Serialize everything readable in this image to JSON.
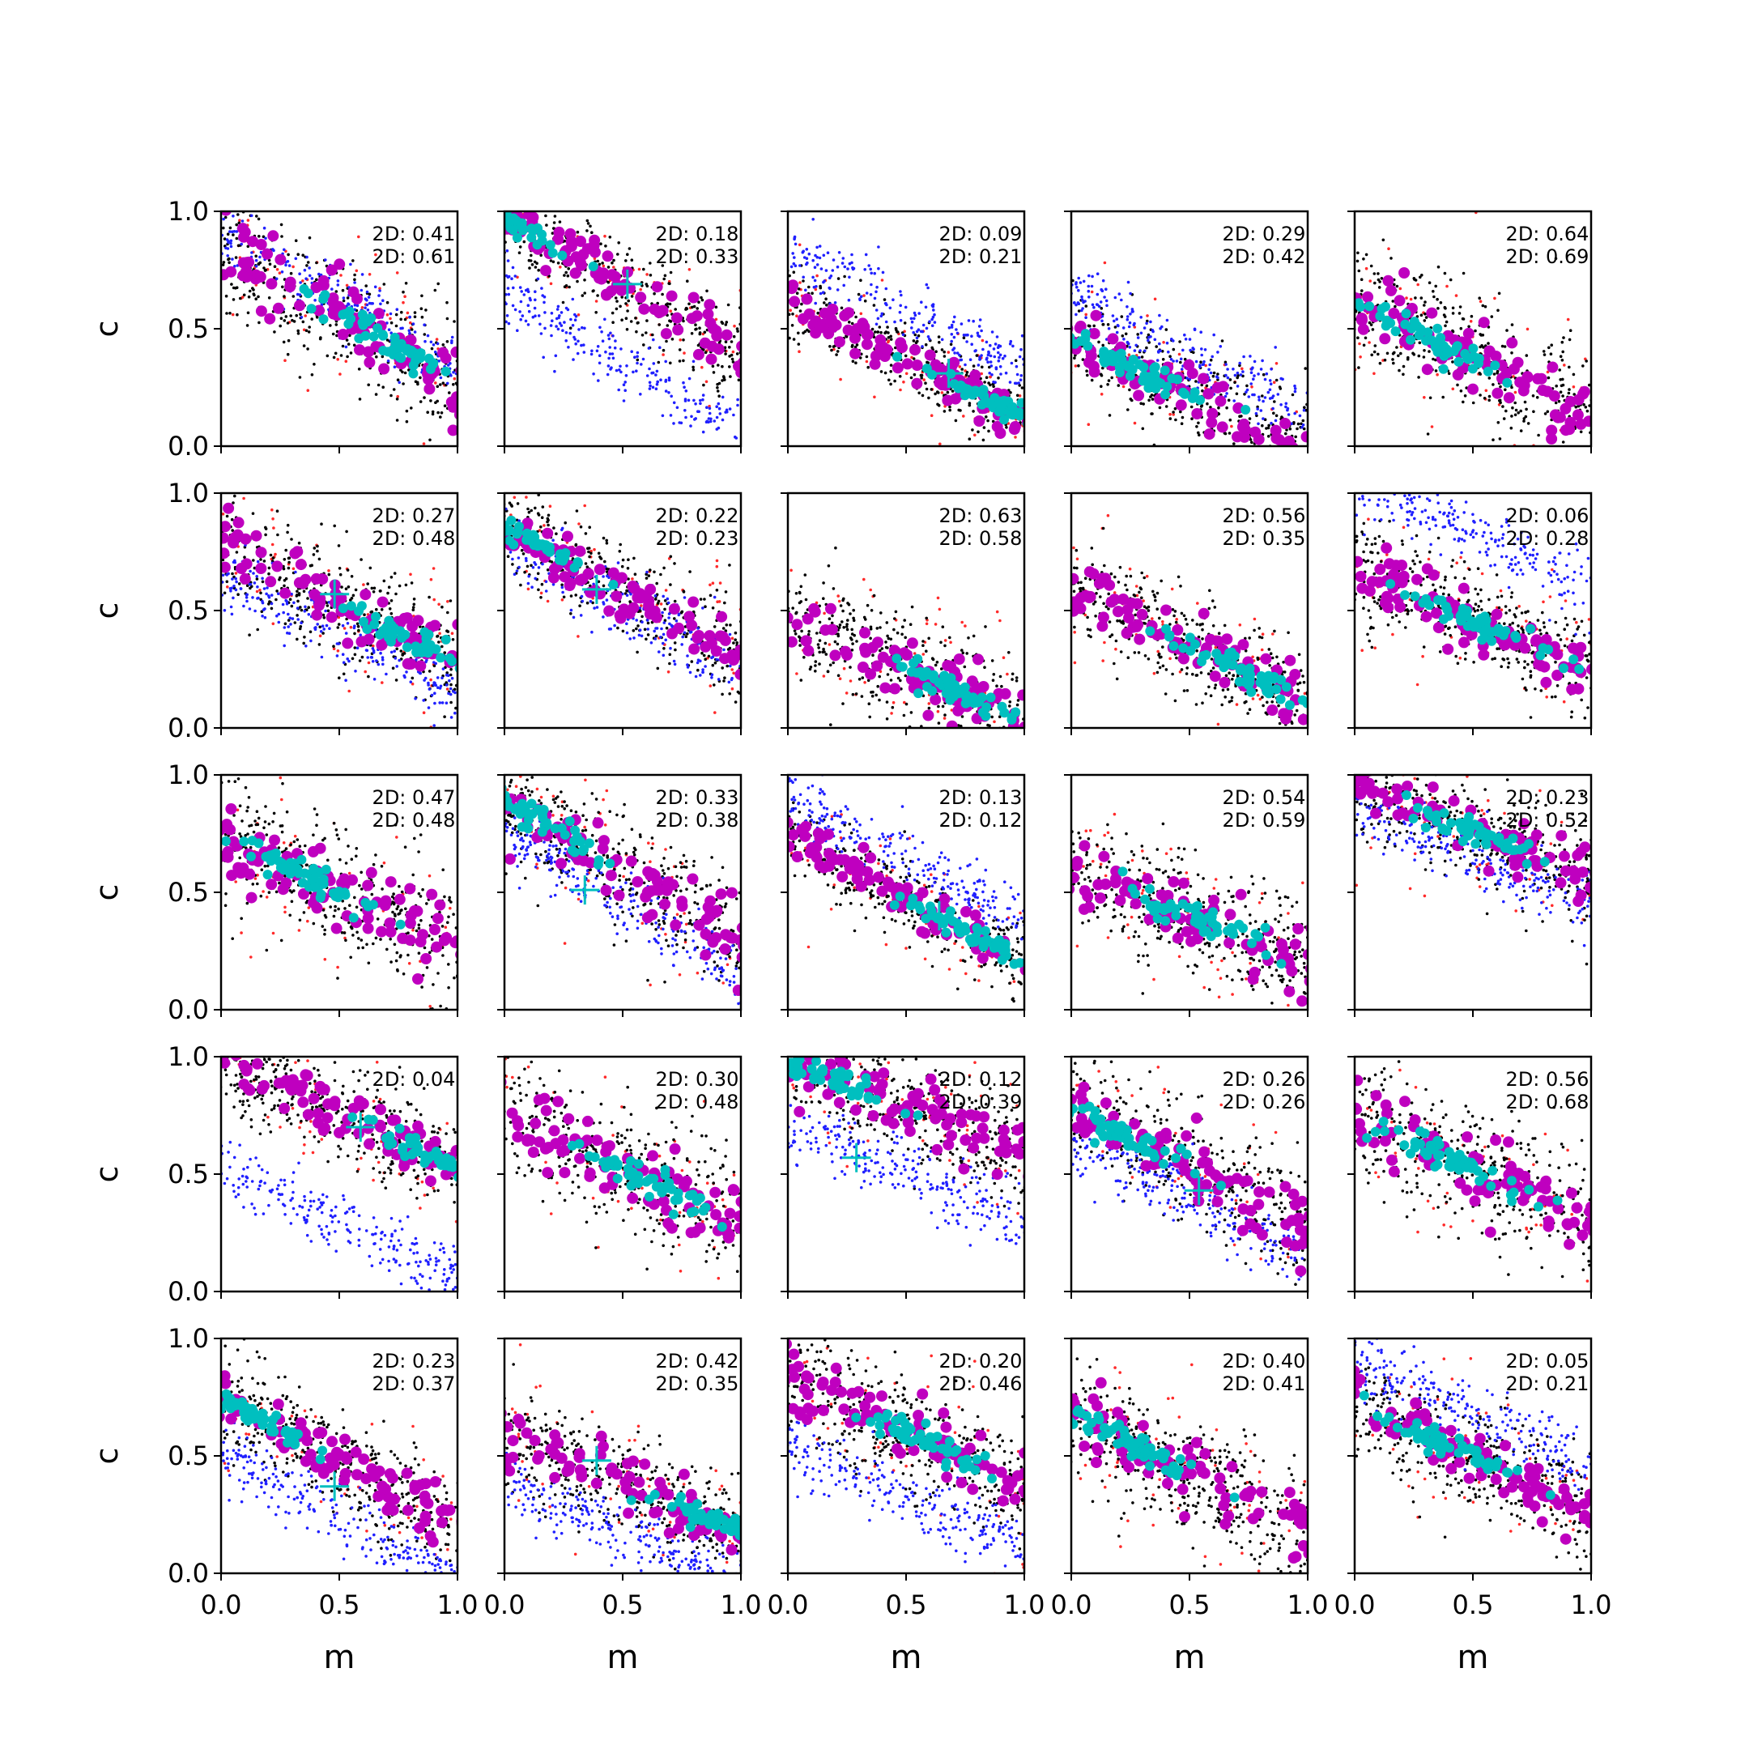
{
  "figure": {
    "xlabel": "m",
    "ylabel": "c",
    "xticks": [
      "0.0",
      "0.5",
      "1.0"
    ],
    "yticks": [
      "0.0",
      "0.5",
      "1.0"
    ]
  },
  "chart_data": {
    "type": "scatter",
    "layout": "5x5 grid of scatter panels",
    "xlim": [
      0,
      1
    ],
    "ylim": [
      0,
      1
    ],
    "xlabel": "m",
    "ylabel": "c",
    "point_colors": {
      "red": "#ff2a2a",
      "black": "#000000",
      "blue": "#2020ff",
      "magenta": "#bf00bf",
      "cyan": "#00bfbf"
    },
    "marker_color": "#00bfbf",
    "panels": [
      {
        "row": 0,
        "col": 0,
        "annotation1": "2D: 0.41",
        "annotation2": "2D: 0.61",
        "slope": -0.55,
        "intercept": 0.83,
        "width": 0.24,
        "center_x": 0.7,
        "blue_intercept": 0.9,
        "marker": null
      },
      {
        "row": 0,
        "col": 1,
        "annotation1": "2D: 0.18",
        "annotation2": "2D: 0.33",
        "slope": -0.6,
        "intercept": 0.98,
        "width": 0.18,
        "center_x": 0.05,
        "blue_intercept": 0.66,
        "marker": [
          0.52,
          0.69
        ]
      },
      {
        "row": 0,
        "col": 2,
        "annotation1": "2D: 0.09",
        "annotation2": "2D: 0.21",
        "slope": -0.5,
        "intercept": 0.62,
        "width": 0.16,
        "center_x": 0.92,
        "blue_intercept": 0.82,
        "marker": [
          0.68,
          0.31
        ]
      },
      {
        "row": 0,
        "col": 3,
        "annotation1": "2D: 0.29",
        "annotation2": "2D: 0.42",
        "slope": -0.5,
        "intercept": 0.47,
        "width": 0.2,
        "center_x": 0.25,
        "blue_intercept": 0.64,
        "marker": null
      },
      {
        "row": 0,
        "col": 4,
        "annotation1": "2D: 0.64",
        "annotation2": "2D: 0.69",
        "slope": -0.5,
        "intercept": 0.62,
        "width": 0.24,
        "center_x": 0.35,
        "blue_intercept": null,
        "marker": null
      },
      {
        "row": 1,
        "col": 0,
        "annotation1": "2D: 0.27",
        "annotation2": "2D: 0.48",
        "slope": -0.5,
        "intercept": 0.78,
        "width": 0.22,
        "center_x": 0.8,
        "blue_intercept": 0.66,
        "marker": [
          0.48,
          0.57
        ]
      },
      {
        "row": 1,
        "col": 1,
        "annotation1": "2D: 0.22",
        "annotation2": "2D: 0.23",
        "slope": -0.55,
        "intercept": 0.86,
        "width": 0.18,
        "center_x": 0.05,
        "blue_intercept": 0.8,
        "marker": [
          0.39,
          0.59
        ]
      },
      {
        "row": 1,
        "col": 2,
        "annotation1": "2D: 0.63",
        "annotation2": "2D: 0.58",
        "slope": -0.45,
        "intercept": 0.48,
        "width": 0.22,
        "center_x": 0.7,
        "blue_intercept": null,
        "marker": null
      },
      {
        "row": 1,
        "col": 3,
        "annotation1": "2D: 0.56",
        "annotation2": "2D: 0.35",
        "slope": -0.5,
        "intercept": 0.6,
        "width": 0.2,
        "center_x": 0.75,
        "blue_intercept": null,
        "marker": null
      },
      {
        "row": 1,
        "col": 4,
        "annotation1": "2D: 0.06",
        "annotation2": "2D: 0.28",
        "slope": -0.45,
        "intercept": 0.68,
        "width": 0.22,
        "center_x": 0.5,
        "blue_intercept": 1.05,
        "marker": null
      },
      {
        "row": 2,
        "col": 0,
        "annotation1": "2D: 0.47",
        "annotation2": "2D: 0.48",
        "slope": -0.45,
        "intercept": 0.73,
        "width": 0.24,
        "center_x": 0.4,
        "blue_intercept": null,
        "marker": null
      },
      {
        "row": 2,
        "col": 1,
        "annotation1": "2D: 0.33",
        "annotation2": "2D: 0.38",
        "slope": -0.6,
        "intercept": 0.9,
        "width": 0.22,
        "center_x": 0.1,
        "blue_intercept": 0.75,
        "marker": [
          0.34,
          0.51
        ]
      },
      {
        "row": 2,
        "col": 2,
        "annotation1": "2D: 0.13",
        "annotation2": "2D: 0.12",
        "slope": -0.55,
        "intercept": 0.75,
        "width": 0.15,
        "center_x": 0.75,
        "blue_intercept": 0.92,
        "marker": [
          0.64,
          0.4
        ]
      },
      {
        "row": 2,
        "col": 3,
        "annotation1": "2D: 0.54",
        "annotation2": "2D: 0.59",
        "slope": -0.4,
        "intercept": 0.6,
        "width": 0.24,
        "center_x": 0.5,
        "blue_intercept": null,
        "marker": null
      },
      {
        "row": 2,
        "col": 4,
        "annotation1": "2D: 0.23",
        "annotation2": "2D: 0.52",
        "slope": -0.4,
        "intercept": 0.96,
        "width": 0.2,
        "center_x": 0.5,
        "blue_intercept": 0.86,
        "marker": null
      },
      {
        "row": 3,
        "col": 0,
        "annotation1": "2D: 0.04",
        "annotation2": "",
        "slope": -0.45,
        "intercept": 0.98,
        "width": 0.18,
        "center_x": 0.9,
        "blue_intercept": 0.52,
        "marker": [
          0.59,
          0.7
        ]
      },
      {
        "row": 3,
        "col": 1,
        "annotation1": "2D: 0.30",
        "annotation2": "2D: 0.48",
        "slope": -0.45,
        "intercept": 0.75,
        "width": 0.24,
        "center_x": 0.6,
        "blue_intercept": null,
        "marker": null
      },
      {
        "row": 3,
        "col": 2,
        "annotation1": "2D: 0.12",
        "annotation2": "2D: 0.39",
        "slope": -0.4,
        "intercept": 0.98,
        "width": 0.2,
        "center_x": 0.2,
        "blue_intercept": 0.7,
        "marker": [
          0.29,
          0.57
        ]
      },
      {
        "row": 3,
        "col": 3,
        "annotation1": "2D: 0.26",
        "annotation2": "2D: 0.26",
        "slope": -0.5,
        "intercept": 0.78,
        "width": 0.22,
        "center_x": 0.2,
        "blue_intercept": 0.65,
        "marker": [
          0.54,
          0.43
        ]
      },
      {
        "row": 3,
        "col": 4,
        "annotation1": "2D: 0.56",
        "annotation2": "2D: 0.68",
        "slope": -0.45,
        "intercept": 0.75,
        "width": 0.24,
        "center_x": 0.4,
        "blue_intercept": null,
        "marker": null
      },
      {
        "row": 4,
        "col": 0,
        "annotation1": "2D: 0.23",
        "annotation2": "2D: 0.37",
        "slope": -0.55,
        "intercept": 0.75,
        "width": 0.2,
        "center_x": 0.1,
        "blue_intercept": 0.52,
        "marker": [
          0.48,
          0.37
        ]
      },
      {
        "row": 4,
        "col": 1,
        "annotation1": "2D: 0.42",
        "annotation2": "2D: 0.35",
        "slope": -0.4,
        "intercept": 0.58,
        "width": 0.2,
        "center_x": 0.9,
        "blue_intercept": 0.38,
        "marker": [
          0.39,
          0.48
        ]
      },
      {
        "row": 4,
        "col": 2,
        "annotation1": "2D: 0.20",
        "annotation2": "2D: 0.46",
        "slope": -0.45,
        "intercept": 0.82,
        "width": 0.24,
        "center_x": 0.6,
        "blue_intercept": 0.55,
        "marker": null
      },
      {
        "row": 4,
        "col": 3,
        "annotation1": "2D: 0.40",
        "annotation2": "2D: 0.41",
        "slope": -0.5,
        "intercept": 0.68,
        "width": 0.24,
        "center_x": 0.3,
        "blue_intercept": null,
        "marker": null
      },
      {
        "row": 4,
        "col": 4,
        "annotation1": "2D: 0.05",
        "annotation2": "2D: 0.21",
        "slope": -0.45,
        "intercept": 0.72,
        "width": 0.22,
        "center_x": 0.4,
        "blue_intercept": 0.9,
        "marker": null
      }
    ]
  }
}
